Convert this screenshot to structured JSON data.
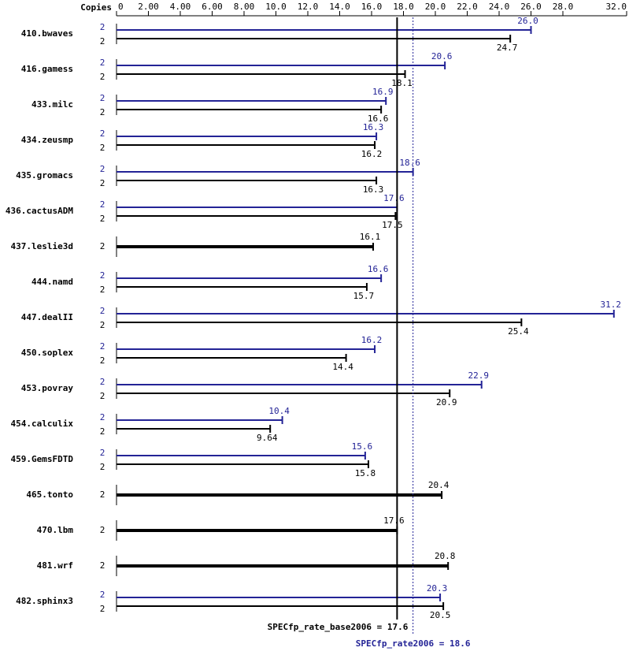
{
  "chart_data": {
    "type": "spec-bar",
    "copies_header": "Copies",
    "categories": [
      "410.bwaves",
      "416.gamess",
      "433.milc",
      "434.zeusmp",
      "435.gromacs",
      "436.cactusADM",
      "437.leslie3d",
      "444.namd",
      "447.dealII",
      "450.soplex",
      "453.povray",
      "454.calculix",
      "459.GemsFDTD",
      "465.tonto",
      "470.lbm",
      "481.wrf",
      "482.sphinx3"
    ],
    "series": [
      {
        "color": "#232396",
        "values": [
          26.0,
          20.6,
          16.9,
          16.3,
          18.6,
          17.6,
          null,
          16.6,
          31.2,
          16.2,
          22.9,
          10.4,
          15.6,
          null,
          null,
          null,
          20.3
        ],
        "value_labels": [
          "26.0",
          "20.6",
          "16.9",
          "16.3",
          "18.6",
          "17.6",
          null,
          "16.6",
          "31.2",
          "16.2",
          "22.9",
          "10.4",
          "15.6",
          null,
          null,
          null,
          "20.3"
        ],
        "copies": [
          2,
          2,
          2,
          2,
          2,
          2,
          null,
          2,
          2,
          2,
          2,
          2,
          2,
          null,
          null,
          null,
          2
        ]
      },
      {
        "color": "#000000",
        "values": [
          24.7,
          18.1,
          16.6,
          16.2,
          16.3,
          17.5,
          16.1,
          15.7,
          25.4,
          14.4,
          20.9,
          9.64,
          15.8,
          20.4,
          17.6,
          20.8,
          20.5
        ],
        "copies": [
          2,
          2,
          2,
          2,
          2,
          2,
          2,
          2,
          2,
          2,
          2,
          2,
          2,
          2,
          2,
          2,
          2
        ]
      }
    ],
    "xlim": [
      0,
      32
    ],
    "xticks": [
      0,
      {
        "value": 2,
        "label": "2.00"
      },
      {
        "value": 4,
        "label": "4.00"
      },
      {
        "value": 6,
        "label": "6.00"
      },
      {
        "value": 8,
        "label": "8.00"
      },
      {
        "value": 10,
        "label": "10.0"
      },
      {
        "value": 12,
        "label": "12.0"
      },
      {
        "value": 14,
        "label": "14.0"
      },
      {
        "value": 16,
        "label": "16.0"
      },
      {
        "value": 18,
        "label": "18.0"
      },
      {
        "value": 20,
        "label": "20.0"
      },
      {
        "value": 22,
        "label": "22.0"
      },
      {
        "value": 24,
        "label": "24.0"
      },
      {
        "value": 26,
        "label": "26.0"
      },
      {
        "value": 28,
        "label": "28.0"
      },
      {
        "value": 32,
        "label": "32.0"
      }
    ],
    "reference_lines": [
      {
        "label": "SPECfp_rate_base2006 = 17.6",
        "value": 17.6,
        "color": "#000000",
        "style": "solid"
      },
      {
        "label": "SPECfp_rate2006 = 18.6",
        "value": 18.6,
        "color": "#232396",
        "style": "dotted"
      }
    ]
  }
}
